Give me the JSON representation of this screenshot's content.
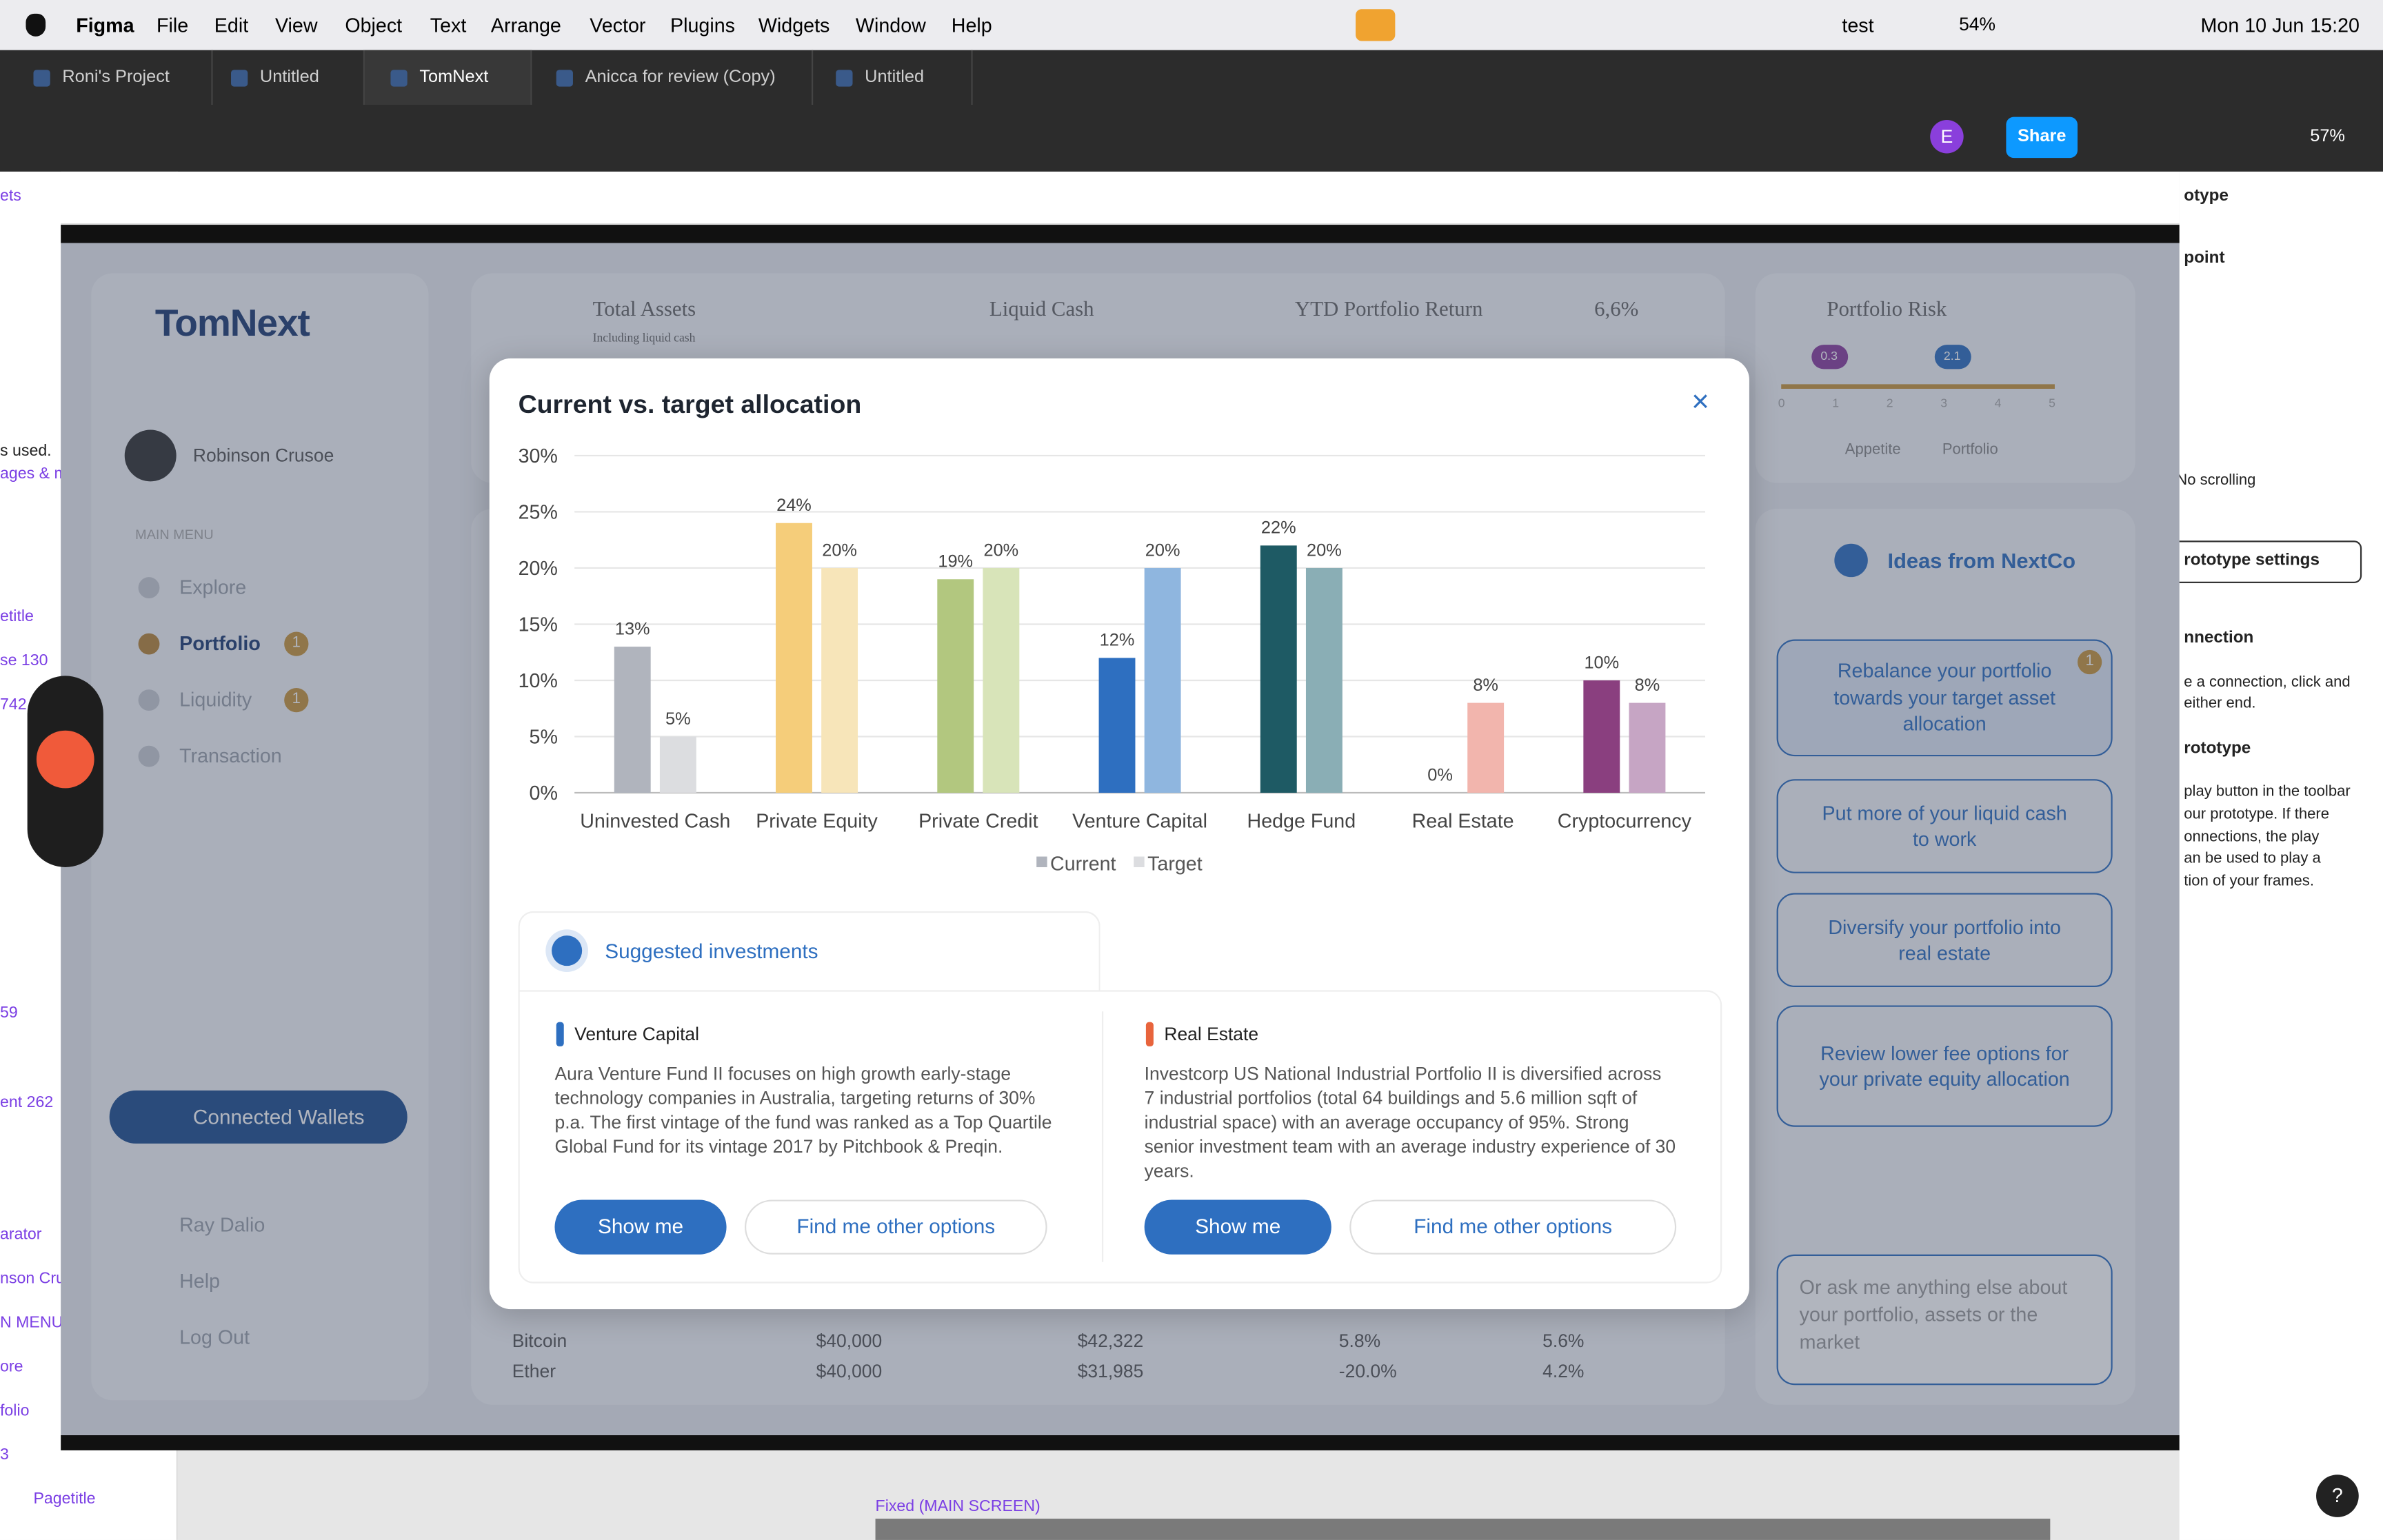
{
  "menubar": {
    "app": "Figma",
    "menus": [
      "File",
      "Edit",
      "View",
      "Object",
      "Text",
      "Arrange",
      "Vector",
      "Plugins",
      "Widgets",
      "Window",
      "Help"
    ],
    "user": "test",
    "battery": "54%",
    "date": "Mon 10 Jun",
    "time": "15:20"
  },
  "tabs": [
    "Roni's Project",
    "Untitled",
    "TomNext",
    "Anicca for review (Copy)",
    "Untitled"
  ],
  "toolbar": {
    "avatar": "E",
    "share": "Share",
    "zoom": "57%"
  },
  "left_panel": [
    "ets",
    "s used.",
    "ages & m",
    "etitle",
    "se 130",
    "742",
    "59",
    "ent 262",
    "arator",
    "nson Cru",
    "N MENU",
    "ore",
    "folio",
    "3",
    "Pagetitle"
  ],
  "right_panel": [
    "otype",
    "point",
    "No scrolling",
    "rototype settings",
    "nnection",
    "e a connection, click and",
    "either end.",
    "rototype",
    "play button in the toolbar",
    "our prototype. If there",
    "onnections, the play",
    "an be used to play a",
    "tion of your frames."
  ],
  "canvas_label": "Fixed (MAIN SCREEN)",
  "help_button": "?",
  "app": {
    "logo": "TomNext",
    "user": "Robinson Crusoe",
    "menu_label": "MAIN MENU",
    "menu": [
      {
        "label": "Explore"
      },
      {
        "label": "Portfolio",
        "badge": 1
      },
      {
        "label": "Liquidity",
        "badge": 1
      },
      {
        "label": "Transaction"
      }
    ],
    "wallets": "Connected Wallets",
    "footer_menu": [
      "Ray Dalio",
      "Help",
      "Log Out"
    ],
    "cards": {
      "total_assets": "Total Assets",
      "total_assets_note": "Including liquid cash",
      "liquid_cash": "Liquid Cash",
      "ytd": "YTD Portfolio Return",
      "ytd_value": "6,6%",
      "risk": "Portfolio Risk",
      "risk_scale": [
        0,
        1,
        2,
        3,
        4,
        5
      ],
      "appetite_value": 0.3,
      "portfolio_value": 2.1,
      "legend": [
        "Appetite",
        "Portfolio"
      ]
    },
    "table": [
      [
        "Bitcoin",
        "$40,000",
        "$42,322",
        "5.8%",
        "5.6%"
      ],
      [
        "Ether",
        "$40,000",
        "$31,985",
        "-20.0%",
        "4.2%"
      ]
    ],
    "ideas": {
      "title": "Ideas from NextCo",
      "badge": 1,
      "items": [
        "Rebalance your portfolio towards your target asset allocation",
        "Put more of your liquid cash to work",
        "Diversify your portfolio into real estate",
        "Review lower fee options for your private equity allocation"
      ],
      "ask": "Or ask me anything else about your portfolio, assets or the market"
    }
  },
  "chart_data": {
    "type": "bar",
    "title": "Current vs. target allocation",
    "categories": [
      "Uninvested Cash",
      "Private Equity",
      "Private Credit",
      "Venture Capital",
      "Hedge Fund",
      "Real Estate",
      "Cryptocurrency"
    ],
    "series": [
      {
        "name": "Current",
        "color": "#b0b4bd",
        "colors": [
          "#b0b4bd",
          "#f5cd7a",
          "#b2c77f",
          "#2e6fc0",
          "#1e5a64",
          "#e8a99f",
          "#8a3f7f"
        ],
        "values": [
          13,
          24,
          19,
          12,
          22,
          0,
          10
        ],
        "value_labels": [
          "13%",
          "24%",
          "19%",
          "12%",
          "22%",
          "0%",
          "10%"
        ]
      },
      {
        "name": "Target",
        "color": "#dcdde0",
        "colors": [
          "#dcdde0",
          "#f7e5b9",
          "#d8e4b9",
          "#8fb6df",
          "#8aaeb5",
          "#f2b5ad",
          "#c6a5c4"
        ],
        "values": [
          5,
          20,
          20,
          20,
          20,
          8,
          8
        ],
        "value_labels": [
          "5%",
          "20%",
          "20%",
          "20%",
          "20%",
          "8%",
          "8%"
        ]
      }
    ],
    "ylim": [
      0,
      30
    ],
    "yticks": [
      {
        "value": 0,
        "label": "0%"
      },
      {
        "value": 5,
        "label": "5%"
      },
      {
        "value": 10,
        "label": "10%"
      },
      {
        "value": 15,
        "label": "15%"
      },
      {
        "value": 20,
        "label": "20%"
      },
      {
        "value": 25,
        "label": "25%"
      },
      {
        "value": 30,
        "label": "30%"
      }
    ],
    "grid": true
  },
  "modal": {
    "suggested": "Suggested investments",
    "button_primary": "Show me",
    "button_secondary": "Find me other options",
    "investments": [
      {
        "title": "Venture Capital",
        "description": "Aura Venture Fund II focuses on high growth early-stage technology companies in Australia, targeting returns of 30% p.a. The first vintage of the fund was ranked as a Top Quartile Global Fund for its vintage 2017 by Pitchbook & Preqin."
      },
      {
        "title": "Real Estate",
        "description": "Investcorp US National Industrial Portfolio II is diversified across 7 industrial portfolios (total 64 buildings and 5.6 million sqft of industrial space) with an average occupancy of 95%. Strong senior investment team with an average industry experience of 30 years."
      }
    ]
  }
}
